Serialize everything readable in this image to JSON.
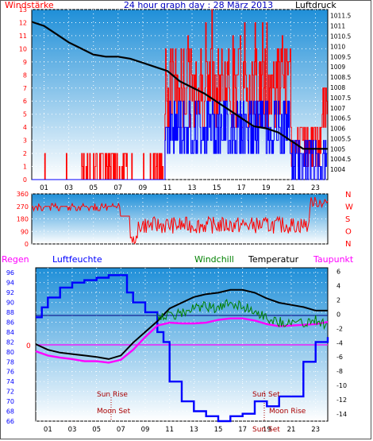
{
  "title": "24 hour graph day : 28 März 2013",
  "colors": {
    "wind": "#ff0000",
    "gust": "#0000ff",
    "pressure": "#000000",
    "direction": "#ff0000",
    "temperature": "#000000",
    "windchill": "#008000",
    "dewpoint": "#ff00ff",
    "humidity": "#0000ff",
    "rain": "#ff00ff",
    "bg_top": "#1f8fd8",
    "bg_bottom": "#ffffff"
  },
  "chart_data": [
    {
      "type": "line",
      "name": "wind-pressure",
      "left_label": "Windstärke",
      "right_label": "Luftdruck",
      "x_ticks": [
        "01",
        "03",
        "05",
        "07",
        "09",
        "11",
        "13",
        "15",
        "17",
        "19",
        "21",
        "23"
      ],
      "y_left_ticks": [
        "0",
        "1",
        "2",
        "3",
        "4",
        "5",
        "6",
        "7",
        "8",
        "9",
        "10",
        "11",
        "12",
        "13"
      ],
      "y_left_lim": [
        0,
        13
      ],
      "y_right_ticks": [
        "1004",
        "1004.5",
        "1005",
        "1005.5",
        "1006",
        "1006.5",
        "1007",
        "1007.5",
        "1008",
        "1008.5",
        "1009",
        "1009.5",
        "1010",
        "1010.5",
        "1011",
        "1011.5"
      ],
      "y_right_lim": [
        1003.5,
        1011.8
      ],
      "pressure": {
        "x": [
          0,
          1,
          2,
          3,
          4,
          5,
          6,
          7,
          8,
          9,
          10,
          11,
          12,
          13,
          14,
          15,
          16,
          17,
          18,
          19,
          20,
          21,
          22,
          23,
          24
        ],
        "y": [
          1011.2,
          1011.0,
          1010.6,
          1010.2,
          1009.9,
          1009.6,
          1009.5,
          1009.5,
          1009.4,
          1009.2,
          1009.0,
          1008.8,
          1008.3,
          1008.0,
          1007.7,
          1007.3,
          1006.9,
          1006.5,
          1006.1,
          1006.0,
          1005.8,
          1005.4,
          1005.0,
          1005.0,
          1005.0
        ]
      },
      "wind_notes": "quiet 0-2 until ~11h, then gusting 4-13 until ~21h"
    },
    {
      "type": "line",
      "name": "wind-direction",
      "y_left_ticks": [
        "0",
        "90",
        "180",
        "270",
        "360"
      ],
      "y_lim": [
        0,
        360
      ],
      "right_labels": [
        "N",
        "W",
        "S",
        "O",
        "N"
      ]
    },
    {
      "type": "line",
      "name": "temp-humidity",
      "legend": [
        "Regen",
        "Luftfeuchte",
        "Windchill",
        "Temperatur",
        "Taupunkt"
      ],
      "y_left_ticks": [
        "66",
        "68",
        "70",
        "72",
        "74",
        "76",
        "78",
        "80",
        "82",
        "84",
        "86",
        "88",
        "90",
        "92",
        "94",
        "96"
      ],
      "y_left_lim": [
        66,
        97
      ],
      "y_right_ticks": [
        "-14",
        "-12",
        "-10",
        "-8",
        "-6",
        "-4",
        "-2",
        "0",
        "2",
        "4",
        "6"
      ],
      "y_right_lim": [
        -15,
        6.5
      ],
      "rain_axis_label": "0",
      "temperature": {
        "x": [
          0,
          1,
          2,
          3,
          4,
          5,
          6,
          7,
          8,
          9,
          10,
          11,
          12,
          13,
          14,
          15,
          16,
          17,
          18,
          19,
          20,
          21,
          22,
          23,
          24
        ],
        "y": [
          -4.2,
          -5.0,
          -5.4,
          -5.6,
          -5.8,
          -6.0,
          -6.3,
          -5.8,
          -4.0,
          -2.5,
          -1.0,
          0.8,
          1.6,
          2.4,
          2.8,
          3.0,
          3.4,
          3.4,
          3.0,
          2.2,
          1.6,
          1.3,
          1.0,
          0.5,
          0.5
        ]
      },
      "windchill": {
        "x": [
          10,
          11,
          12,
          13,
          14,
          15,
          16,
          17,
          18,
          19,
          20,
          21,
          22,
          23,
          24
        ],
        "y": [
          0.6,
          0.4,
          0.8,
          1.5,
          1.8,
          1.4,
          2.3,
          1.8,
          1.2,
          0.2,
          -0.4,
          -0.4,
          -0.6,
          0.0,
          -0.9
        ]
      },
      "dewpoint": {
        "x": [
          0,
          1,
          2,
          3,
          4,
          5,
          6,
          7,
          8,
          9,
          10,
          11,
          12,
          13,
          14,
          15,
          16,
          17,
          18,
          19,
          20,
          21,
          22,
          23,
          24
        ],
        "y": [
          -5.2,
          -5.8,
          -6.1,
          -6.3,
          -6.6,
          -6.6,
          -6.8,
          -6.4,
          -5.0,
          -3.2,
          -1.6,
          -1.2,
          -1.3,
          -1.3,
          -1.2,
          -0.8,
          -0.6,
          -0.6,
          -0.9,
          -1.4,
          -1.7,
          -1.6,
          -1.5,
          -1.4,
          -1.1
        ]
      },
      "humidity": {
        "x": [
          0,
          0.5,
          1,
          2,
          3,
          4,
          5,
          6,
          7,
          7.5,
          8,
          9,
          10,
          10.5,
          11,
          12,
          13,
          14,
          15,
          16,
          17,
          18,
          19,
          20,
          21,
          22,
          23,
          23.5,
          24
        ],
        "y": [
          87,
          89,
          91,
          93,
          94,
          94.5,
          95,
          95.5,
          95.5,
          92,
          90,
          88,
          84,
          82,
          74,
          70,
          68,
          67,
          66,
          67,
          67.5,
          70,
          69,
          71,
          71,
          78,
          82,
          82,
          83
        ]
      },
      "sun_rise_label": "Sun Rise",
      "sun_set_label": "Sun Set",
      "moon_set_label": "Moon Set",
      "moon_rise_label": "Moon Rise",
      "sun_set_bottom_label": "Sun Set"
    }
  ]
}
